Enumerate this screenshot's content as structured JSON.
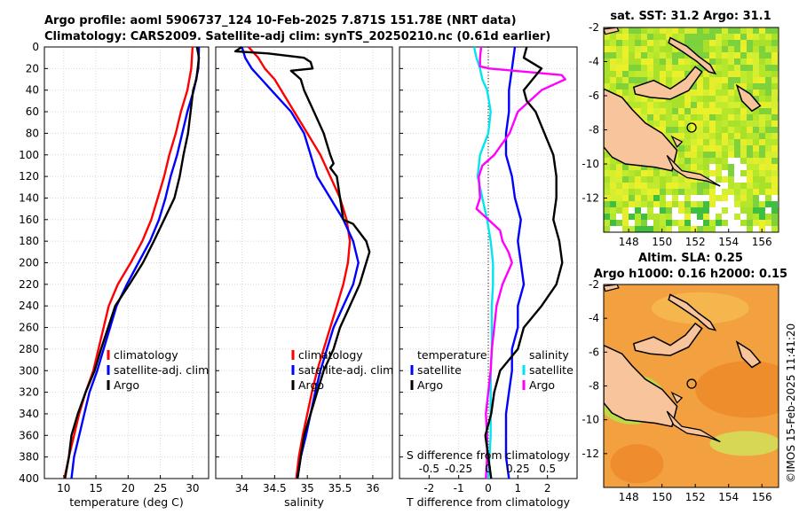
{
  "header": {
    "line1": "Argo profile: aoml 5906737_124 10-Feb-2025 7.871S 151.78E (NRT data)",
    "line2": "Climatology: CARS2009. Satellite-adj clim: synTS_20250210.nc (0.61d earlier)"
  },
  "watermark": "©IMOS 15-Feb-2025 11:41:20",
  "colors": {
    "climatology": "#ff0000",
    "satellite": "#0000ff",
    "argo": "#000000",
    "sat_salinity": "#00e5ee",
    "salinity_diff": "#ff00ff",
    "land": "#f7c49c",
    "missing": "#ffffff"
  },
  "chart_data": [
    {
      "type": "line",
      "id": "temperature",
      "xlabel": "temperature (deg C)",
      "ylabel": "",
      "xlim": [
        7,
        32.5
      ],
      "ylim": [
        0,
        400
      ],
      "xticks": [
        "10",
        "15",
        "20",
        "25",
        "30"
      ],
      "yticks": [
        "0",
        "20",
        "40",
        "60",
        "80",
        "100",
        "120",
        "140",
        "160",
        "180",
        "200",
        "220",
        "240",
        "260",
        "280",
        "300",
        "320",
        "340",
        "360",
        "380",
        "400"
      ],
      "legend": [
        "climatology",
        "satellite-adj. clim",
        "Argo"
      ],
      "series": [
        {
          "name": "climatology",
          "depth": [
            0,
            20,
            40,
            60,
            80,
            100,
            120,
            140,
            160,
            180,
            200,
            220,
            240,
            260,
            280,
            300,
            320,
            340,
            360,
            380,
            400
          ],
          "values": [
            30.0,
            29.8,
            29.2,
            28.2,
            27.4,
            26.4,
            25.6,
            24.6,
            23.6,
            22.2,
            20.4,
            18.4,
            17.0,
            16.2,
            15.4,
            14.6,
            13.4,
            12.4,
            11.6,
            10.8,
            10.1
          ]
        },
        {
          "name": "satellite-adj. clim",
          "depth": [
            0,
            20,
            40,
            60,
            80,
            100,
            120,
            140,
            160,
            180,
            200,
            220,
            240,
            260,
            280,
            300,
            320,
            340,
            360,
            380,
            400
          ],
          "values": [
            31.0,
            30.9,
            30.2,
            29.2,
            28.4,
            27.6,
            26.6,
            25.8,
            24.8,
            23.4,
            21.6,
            19.8,
            18.2,
            17.2,
            16.2,
            15.2,
            14.0,
            13.2,
            12.4,
            11.6,
            11.2
          ]
        },
        {
          "name": "Argo",
          "depth": [
            0,
            10,
            20,
            30,
            40,
            60,
            80,
            100,
            120,
            140,
            160,
            180,
            200,
            220,
            240,
            260,
            280,
            300,
            320,
            340,
            360,
            380,
            400
          ],
          "values": [
            30.7,
            31.0,
            30.8,
            30.6,
            30.1,
            29.7,
            29.3,
            28.6,
            28.0,
            27.2,
            25.6,
            24.0,
            22.3,
            20.2,
            18.0,
            16.9,
            15.8,
            14.8,
            13.4,
            12.2,
            11.2,
            10.8,
            10.2
          ]
        }
      ]
    },
    {
      "type": "line",
      "id": "salinity",
      "xlabel": "salinity",
      "xlim": [
        33.6,
        36.3
      ],
      "ylim": [
        0,
        400
      ],
      "xticks": [
        "34",
        "34.5",
        "35",
        "35.5",
        "36"
      ],
      "legend": [
        "climatology",
        "satellite-adj. clim",
        "Argo"
      ],
      "series": [
        {
          "name": "climatology",
          "depth": [
            0,
            10,
            20,
            30,
            40,
            60,
            80,
            100,
            120,
            140,
            160,
            180,
            200,
            220,
            240,
            260,
            280,
            300,
            320,
            340,
            360,
            380,
            400
          ],
          "values": [
            34.1,
            34.25,
            34.35,
            34.5,
            34.6,
            34.8,
            35.0,
            35.2,
            35.35,
            35.5,
            35.6,
            35.65,
            35.62,
            35.55,
            35.45,
            35.35,
            35.25,
            35.15,
            35.07,
            35.0,
            34.93,
            34.87,
            34.83
          ]
        },
        {
          "name": "satellite-adj. clim",
          "depth": [
            0,
            10,
            20,
            30,
            40,
            60,
            80,
            100,
            120,
            140,
            160,
            180,
            200,
            220,
            240,
            260,
            280,
            300,
            320,
            340,
            360,
            380,
            400
          ],
          "values": [
            34.0,
            34.05,
            34.15,
            34.3,
            34.45,
            34.75,
            34.95,
            35.05,
            35.15,
            35.35,
            35.55,
            35.7,
            35.78,
            35.7,
            35.55,
            35.4,
            35.3,
            35.2,
            35.12,
            35.05,
            34.98,
            34.9,
            34.85
          ]
        },
        {
          "name": "Argo",
          "depth": [
            0,
            4,
            6,
            10,
            14,
            20,
            22,
            30,
            40,
            60,
            80,
            100,
            108,
            112,
            120,
            140,
            160,
            164,
            180,
            190,
            200,
            220,
            240,
            260,
            280,
            300,
            320,
            340,
            360,
            380,
            400
          ],
          "values": [
            34.0,
            33.9,
            34.4,
            34.95,
            35.05,
            35.08,
            34.75,
            34.9,
            34.95,
            35.1,
            35.25,
            35.35,
            35.4,
            35.35,
            35.45,
            35.5,
            35.55,
            35.7,
            35.9,
            35.95,
            35.9,
            35.8,
            35.65,
            35.5,
            35.4,
            35.25,
            35.15,
            35.05,
            34.95,
            34.9,
            34.85
          ]
        }
      ]
    },
    {
      "type": "line",
      "id": "difference",
      "xlabel": "T difference from climatology",
      "xlabel_top": "S difference from climatology",
      "xlim": [
        -3,
        3
      ],
      "top_xlim": [
        -0.75,
        0.75
      ],
      "ylim": [
        0,
        400
      ],
      "xticks": [
        "-2",
        "-1",
        "0",
        "1",
        "2"
      ],
      "top_xticks": [
        "-0.5",
        "-0.25",
        "0",
        "0.25",
        "0.5"
      ],
      "legend_headers": [
        "temperature",
        "salinity"
      ],
      "legend_left": [
        "satellite",
        "Argo"
      ],
      "legend_right": [
        "satellite",
        "Argo"
      ],
      "series": [
        {
          "name": "temperature satellite",
          "depth": [
            0,
            20,
            40,
            60,
            80,
            100,
            120,
            140,
            160,
            180,
            200,
            220,
            240,
            260,
            280,
            300,
            320,
            340,
            360,
            380,
            400
          ],
          "values": [
            0.9,
            0.8,
            0.7,
            0.7,
            0.6,
            0.6,
            0.8,
            0.9,
            1.1,
            1.0,
            1.1,
            1.2,
            1.0,
            1.0,
            0.8,
            0.8,
            0.7,
            0.6,
            0.6,
            0.6,
            0.7
          ]
        },
        {
          "name": "temperature Argo",
          "depth": [
            0,
            10,
            20,
            30,
            40,
            50,
            60,
            80,
            100,
            120,
            140,
            160,
            180,
            200,
            220,
            240,
            260,
            280,
            300,
            320,
            340,
            360,
            380,
            400
          ],
          "values": [
            1.3,
            1.2,
            1.8,
            1.5,
            1.2,
            1.3,
            1.6,
            1.9,
            2.2,
            2.3,
            2.3,
            2.2,
            2.4,
            2.5,
            2.3,
            1.8,
            1.2,
            1.0,
            0.4,
            0.2,
            0.1,
            -0.1,
            0.0,
            0.1
          ]
        },
        {
          "name": "salinity satellite",
          "depth": [
            0,
            10,
            20,
            30,
            40,
            60,
            80,
            100,
            120,
            140,
            160,
            180,
            200,
            220,
            240,
            260,
            280,
            300,
            320,
            340,
            360,
            380,
            400
          ],
          "values": [
            -0.12,
            -0.1,
            -0.07,
            -0.05,
            -0.01,
            0.02,
            0.0,
            -0.07,
            -0.09,
            -0.05,
            -0.01,
            0.02,
            0.04,
            0.04,
            0.03,
            0.03,
            0.03,
            0.02,
            0.02,
            0.02,
            0.02,
            0.01,
            0.0
          ]
        },
        {
          "name": "salinity Argo",
          "depth": [
            0,
            10,
            18,
            20,
            26,
            30,
            40,
            60,
            80,
            100,
            110,
            120,
            140,
            150,
            160,
            170,
            180,
            190,
            200,
            220,
            240,
            260,
            280,
            300,
            320,
            340,
            360,
            380,
            400
          ],
          "values": [
            -0.06,
            -0.07,
            -0.07,
            0.01,
            0.62,
            0.65,
            0.45,
            0.25,
            0.18,
            0.05,
            -0.05,
            -0.08,
            -0.07,
            -0.1,
            0.0,
            0.1,
            0.12,
            0.17,
            0.2,
            0.12,
            0.07,
            0.05,
            0.03,
            0.02,
            0.0,
            -0.02,
            -0.01,
            -0.01,
            -0.02
          ]
        }
      ]
    },
    {
      "type": "heatmap",
      "id": "sst_map",
      "title": "sat. SST: 31.2 Argo: 31.1",
      "xlim": [
        146.5,
        157.0
      ],
      "ylim": [
        -14,
        -2
      ],
      "xticks": [
        "148",
        "150",
        "152",
        "154",
        "156"
      ],
      "yticks": [
        "-2",
        "-4",
        "-6",
        "-8",
        "-10",
        "-12"
      ],
      "float_position": [
        151.78,
        -7.871
      ]
    },
    {
      "type": "heatmap",
      "id": "sla_map",
      "title": "Altim. SLA: 0.25",
      "subtitle": "Argo h1000: 0.16 h2000: 0.15",
      "xlim": [
        146.5,
        157.0
      ],
      "ylim": [
        -14,
        -2
      ],
      "xticks": [
        "148",
        "150",
        "152",
        "154",
        "156"
      ],
      "yticks": [
        "-2",
        "-4",
        "-6",
        "-8",
        "-10",
        "-12"
      ],
      "float_position": [
        151.78,
        -7.871
      ]
    }
  ]
}
